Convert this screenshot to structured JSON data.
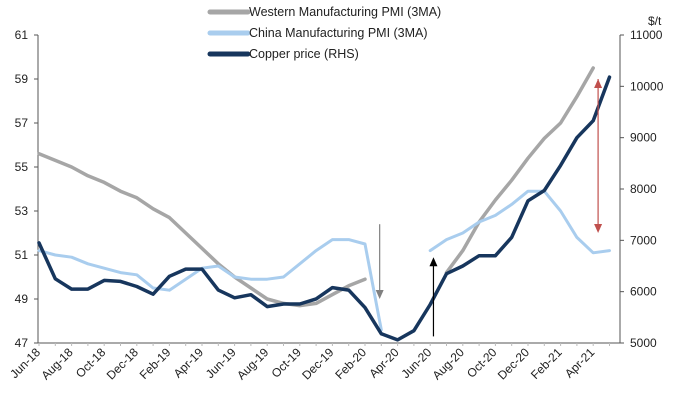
{
  "chart_data": {
    "type": "line",
    "title": "",
    "xlabel": "",
    "ylabel_left": "",
    "ylabel_right": "$/t",
    "ylim_left": [
      47,
      61
    ],
    "ylim_right": [
      5000,
      11000
    ],
    "yticks_left": [
      47,
      49,
      51,
      53,
      55,
      57,
      59,
      61
    ],
    "yticks_right": [
      5000,
      6000,
      7000,
      8000,
      9000,
      10000,
      11000
    ],
    "x": [
      "Jun-18",
      "Jul-18",
      "Aug-18",
      "Sep-18",
      "Oct-18",
      "Nov-18",
      "Dec-18",
      "Jan-19",
      "Feb-19",
      "Mar-19",
      "Apr-19",
      "May-19",
      "Jun-19",
      "Jul-19",
      "Aug-19",
      "Sep-19",
      "Oct-19",
      "Nov-19",
      "Dec-19",
      "Jan-20",
      "Feb-20",
      "Mar-20",
      "Apr-20",
      "May-20",
      "Jun-20",
      "Jul-20",
      "Aug-20",
      "Sep-20",
      "Oct-20",
      "Nov-20",
      "Dec-20",
      "Jan-21",
      "Feb-21",
      "Mar-21",
      "Apr-21",
      "May-21"
    ],
    "xtick_labels": [
      "Jun-18",
      "Aug-18",
      "Oct-18",
      "Dec-18",
      "Feb-19",
      "Apr-19",
      "Jun-19",
      "Aug-19",
      "Oct-19",
      "Dec-19",
      "Feb-20",
      "Apr-20",
      "Jun-20",
      "Aug-20",
      "Oct-20",
      "Dec-20",
      "Feb-21",
      "Apr-21"
    ],
    "legend_position": "top-center",
    "grid": false,
    "series": [
      {
        "name": "Western Manufacturing PMI (3MA)",
        "axis": "left",
        "color": "#a6a6a6",
        "values": [
          55.6,
          55.3,
          55.0,
          54.6,
          54.3,
          53.9,
          53.6,
          53.1,
          52.7,
          52.0,
          51.3,
          50.6,
          50.0,
          49.5,
          49.0,
          48.8,
          48.7,
          48.8,
          49.2,
          49.6,
          49.9,
          null,
          null,
          null,
          null,
          50.2,
          51.2,
          52.5,
          53.5,
          54.4,
          55.4,
          56.3,
          57.0,
          58.2,
          59.5,
          null
        ]
      },
      {
        "name": "China Manufacturing PMI (3MA)",
        "axis": "left",
        "color": "#a9cdee",
        "values": [
          51.2,
          51.0,
          50.9,
          50.6,
          50.4,
          50.2,
          50.1,
          49.5,
          49.4,
          49.9,
          50.4,
          50.5,
          50.0,
          49.9,
          49.9,
          50.0,
          50.6,
          51.2,
          51.7,
          51.7,
          51.5,
          47.6,
          null,
          null,
          51.2,
          51.7,
          52.0,
          52.5,
          52.8,
          53.3,
          53.9,
          53.9,
          53.0,
          51.8,
          51.1,
          51.2
        ]
      },
      {
        "name": "Copper price (RHS)",
        "axis": "right",
        "color": "#17365d",
        "values": [
          6950,
          6250,
          6050,
          6050,
          6220,
          6200,
          6100,
          5950,
          6300,
          6440,
          6440,
          6030,
          5880,
          5940,
          5710,
          5760,
          5760,
          5860,
          6080,
          6030,
          5690,
          5180,
          5060,
          5240,
          5750,
          6350,
          6500,
          6700,
          6700,
          7060,
          7770,
          7970,
          8460,
          9000,
          9330,
          10180
        ]
      }
    ],
    "annotations": [
      {
        "type": "arrow-down",
        "color": "#808080",
        "x_index": 20.9,
        "from": 52.4,
        "to": 49.0
      },
      {
        "type": "arrow-up",
        "color": "#000000",
        "x_index": 24.2,
        "from": 47.3,
        "to": 50.9
      },
      {
        "type": "double-arrow",
        "color": "#c0504d",
        "x_index": 34.3,
        "from": 59.0,
        "to": 52.0
      }
    ]
  }
}
